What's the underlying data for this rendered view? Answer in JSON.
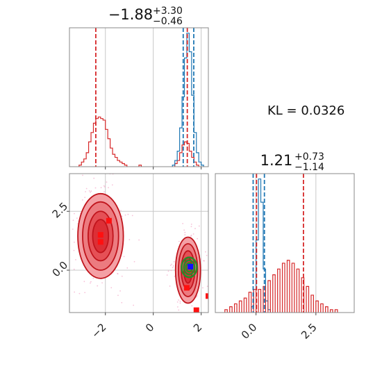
{
  "chart_data": [
    {
      "type": "step-histogram",
      "panel": "top-left",
      "title": {
        "main": "−1.88",
        "sup": "+3.30",
        "sub": "−0.46"
      },
      "xlim": [
        -3.5,
        2.3
      ],
      "x_ticks": [
        -2,
        0,
        2
      ],
      "grid": true,
      "series": [
        {
          "color": "#d62728",
          "bins": [
            [
              -3.05,
              1
            ],
            [
              -2.95,
              3
            ],
            [
              -2.85,
              5
            ],
            [
              -2.75,
              9
            ],
            [
              -2.65,
              16
            ],
            [
              -2.55,
              22
            ],
            [
              -2.45,
              28
            ],
            [
              -2.35,
              31
            ],
            [
              -2.25,
              32
            ],
            [
              -2.15,
              31
            ],
            [
              -2.05,
              30
            ],
            [
              -1.95,
              24
            ],
            [
              -1.85,
              18
            ],
            [
              -1.75,
              12
            ],
            [
              -1.65,
              8
            ],
            [
              -1.55,
              6
            ],
            [
              -1.45,
              4
            ],
            [
              -1.35,
              3
            ],
            [
              -1.25,
              2
            ],
            [
              -1.15,
              1
            ],
            [
              -0.55,
              1
            ],
            [
              0.95,
              2
            ],
            [
              1.05,
              4
            ],
            [
              1.15,
              9
            ],
            [
              1.25,
              14
            ],
            [
              1.35,
              16
            ],
            [
              1.45,
              15
            ],
            [
              1.55,
              10
            ],
            [
              1.65,
              6
            ],
            [
              1.75,
              3
            ],
            [
              1.85,
              1
            ]
          ]
        },
        {
          "color": "#1f77b4",
          "bins": [
            [
              0.85,
              1
            ],
            [
              0.95,
              4
            ],
            [
              1.05,
              10
            ],
            [
              1.15,
              25
            ],
            [
              1.25,
              45
            ],
            [
              1.35,
              70
            ],
            [
              1.45,
              86
            ],
            [
              1.55,
              74
            ],
            [
              1.65,
              46
            ],
            [
              1.75,
              22
            ],
            [
              1.85,
              9
            ],
            [
              1.95,
              3
            ],
            [
              2.05,
              1
            ]
          ]
        }
      ],
      "lines": [
        {
          "x": -2.4,
          "color": "#d62728"
        },
        {
          "x": 1.42,
          "color": "#d62728"
        },
        {
          "x": 1.25,
          "color": "#1f77b4"
        },
        {
          "x": 1.69,
          "color": "#1f77b4"
        }
      ]
    },
    {
      "type": "contour-scatter",
      "panel": "bottom-left",
      "xlim": [
        -3.5,
        2.3
      ],
      "ylim": [
        -1.8,
        4.1
      ],
      "x_ticks": [
        -2,
        0,
        2
      ],
      "y_ticks": [
        0.0,
        2.5
      ],
      "grid": true,
      "red_blobs": [
        {
          "cx": -2.2,
          "cy": 1.45,
          "levels": [
            [
              0.95,
              1.8
            ],
            [
              0.75,
              1.45
            ],
            [
              0.52,
              1.05
            ],
            [
              0.33,
              0.7
            ]
          ]
        },
        {
          "cx": 1.45,
          "cy": 0.0,
          "levels": [
            [
              0.52,
              1.4
            ],
            [
              0.4,
              1.12
            ],
            [
              0.28,
              0.82
            ],
            [
              0.17,
              0.55
            ]
          ]
        }
      ],
      "green_contours": {
        "cx": 1.5,
        "cy": 0.12,
        "levels": [
          [
            0.32,
            0.42
          ],
          [
            0.22,
            0.3
          ],
          [
            0.13,
            0.18
          ]
        ]
      },
      "red_points": [
        [
          -2.2,
          1.5
        ],
        [
          -2.2,
          1.2
        ],
        [
          -1.85,
          2.1
        ],
        [
          1.4,
          -0.75
        ],
        [
          2.3,
          -1.1
        ],
        [
          1.8,
          -1.7
        ]
      ],
      "blue_points": [
        [
          1.55,
          0.15
        ]
      ]
    },
    {
      "type": "step-histogram",
      "panel": "bottom-right",
      "title": {
        "main": "1.21",
        "sup": "+0.73",
        "sub": "−1.14"
      },
      "xlim": [
        -1.7,
        4.1
      ],
      "x_ticks": [
        0.0,
        2.5
      ],
      "grid": true,
      "series": [
        {
          "color": "#1f77b4",
          "bins": [
            [
              -0.15,
              2
            ],
            [
              -0.05,
              8
            ],
            [
              0.05,
              25
            ],
            [
              0.15,
              46
            ],
            [
              0.25,
              38
            ],
            [
              0.35,
              15
            ],
            [
              0.45,
              4
            ],
            [
              0.55,
              1
            ]
          ]
        },
        {
          "color": "#d62728",
          "bins": [
            [
              -1.25,
              1
            ],
            [
              -1.05,
              2
            ],
            [
              -0.85,
              3
            ],
            [
              -0.65,
              4
            ],
            [
              -0.45,
              5
            ],
            [
              -0.25,
              7
            ],
            [
              -0.05,
              8
            ],
            [
              0.15,
              8
            ],
            [
              0.35,
              9
            ],
            [
              0.55,
              11
            ],
            [
              0.75,
              13
            ],
            [
              0.95,
              15
            ],
            [
              1.15,
              17
            ],
            [
              1.35,
              18
            ],
            [
              1.55,
              17
            ],
            [
              1.75,
              15
            ],
            [
              1.95,
              12
            ],
            [
              2.15,
              9
            ],
            [
              2.35,
              6
            ],
            [
              2.55,
              4
            ],
            [
              2.75,
              3
            ],
            [
              2.95,
              2
            ],
            [
              3.15,
              1
            ],
            [
              3.35,
              1
            ]
          ]
        }
      ],
      "lines": [
        {
          "x": 0.02,
          "color": "#d62728"
        },
        {
          "x": 1.98,
          "color": "#d62728"
        },
        {
          "x": -0.12,
          "color": "#1f77b4"
        },
        {
          "x": 0.35,
          "color": "#1f77b4"
        }
      ]
    }
  ],
  "annotation": {
    "kl_text": "KL = 0.0326"
  }
}
